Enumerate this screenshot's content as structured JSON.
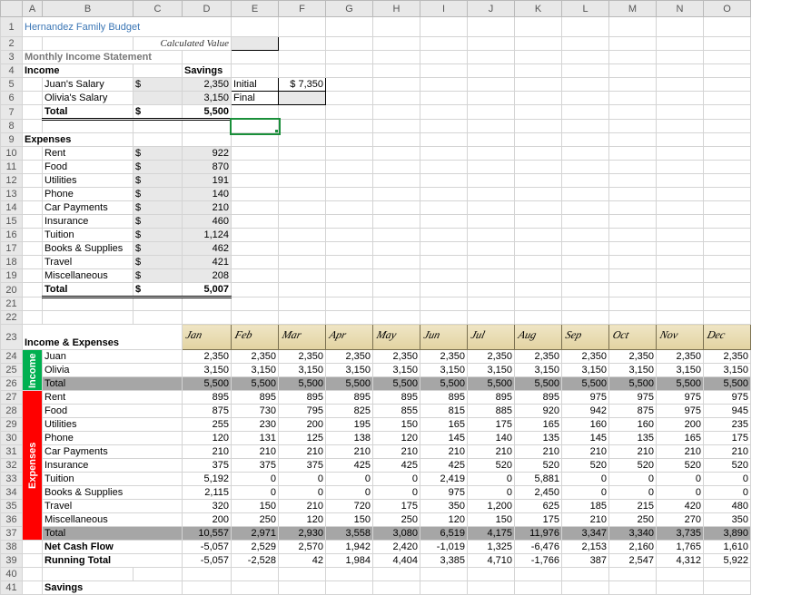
{
  "title": "Hernandez Family Budget",
  "subhead": "Monthly Income Statement",
  "calc_label": "Calculated Value",
  "sections": {
    "income": "Income",
    "expenses": "Expenses",
    "savings": "Savings",
    "initial": "Initial",
    "final": "Final",
    "total": "Total",
    "income_exp": "Income & Expenses",
    "netcash": "Net Cash Flow",
    "runtot": "Running Total"
  },
  "income": {
    "rows": [
      {
        "label": "Juan's Salary",
        "cur": "$",
        "val": "2,350"
      },
      {
        "label": "Olivia's Salary",
        "cur": "",
        "val": "3,150"
      }
    ],
    "total": {
      "cur": "$",
      "val": "5,500"
    }
  },
  "savings": {
    "initial": "$    7,350",
    "final": ""
  },
  "expenses_top": {
    "rows": [
      {
        "label": "Rent",
        "cur": "$",
        "val": "922"
      },
      {
        "label": "Food",
        "cur": "$",
        "val": "870"
      },
      {
        "label": "Utilities",
        "cur": "$",
        "val": "191"
      },
      {
        "label": "Phone",
        "cur": "$",
        "val": "140"
      },
      {
        "label": "Car Payments",
        "cur": "$",
        "val": "210"
      },
      {
        "label": "Insurance",
        "cur": "$",
        "val": "460"
      },
      {
        "label": "Tuition",
        "cur": "$",
        "val": "1,124"
      },
      {
        "label": "Books & Supplies",
        "cur": "$",
        "val": "462"
      },
      {
        "label": "Travel",
        "cur": "$",
        "val": "421"
      },
      {
        "label": "Miscellaneous",
        "cur": "$",
        "val": "208"
      }
    ],
    "total": {
      "cur": "$",
      "val": "5,007"
    }
  },
  "months": [
    "Jan",
    "Feb",
    "Mar",
    "Apr",
    "May",
    "Jun",
    "Jul",
    "Aug",
    "Sep",
    "Oct",
    "Nov",
    "Dec"
  ],
  "vlabels": {
    "income": "Income",
    "expenses": "Expenses"
  },
  "monthly": {
    "income": [
      {
        "label": "Juan",
        "v": [
          "2,350",
          "2,350",
          "2,350",
          "2,350",
          "2,350",
          "2,350",
          "2,350",
          "2,350",
          "2,350",
          "2,350",
          "2,350",
          "2,350"
        ]
      },
      {
        "label": "Olivia",
        "v": [
          "3,150",
          "3,150",
          "3,150",
          "3,150",
          "3,150",
          "3,150",
          "3,150",
          "3,150",
          "3,150",
          "3,150",
          "3,150",
          "3,150"
        ]
      }
    ],
    "income_total": [
      "5,500",
      "5,500",
      "5,500",
      "5,500",
      "5,500",
      "5,500",
      "5,500",
      "5,500",
      "5,500",
      "5,500",
      "5,500",
      "5,500"
    ],
    "expenses": [
      {
        "label": "Rent",
        "v": [
          "895",
          "895",
          "895",
          "895",
          "895",
          "895",
          "895",
          "895",
          "975",
          "975",
          "975",
          "975"
        ]
      },
      {
        "label": "Food",
        "v": [
          "875",
          "730",
          "795",
          "825",
          "855",
          "815",
          "885",
          "920",
          "942",
          "875",
          "975",
          "945"
        ]
      },
      {
        "label": "Utilities",
        "v": [
          "255",
          "230",
          "200",
          "195",
          "150",
          "165",
          "175",
          "165",
          "160",
          "160",
          "200",
          "235"
        ]
      },
      {
        "label": "Phone",
        "v": [
          "120",
          "131",
          "125",
          "138",
          "120",
          "145",
          "140",
          "135",
          "145",
          "135",
          "165",
          "175"
        ]
      },
      {
        "label": "Car Payments",
        "v": [
          "210",
          "210",
          "210",
          "210",
          "210",
          "210",
          "210",
          "210",
          "210",
          "210",
          "210",
          "210"
        ]
      },
      {
        "label": "Insurance",
        "v": [
          "375",
          "375",
          "375",
          "425",
          "425",
          "425",
          "520",
          "520",
          "520",
          "520",
          "520",
          "520"
        ]
      },
      {
        "label": "Tuition",
        "v": [
          "5,192",
          "0",
          "0",
          "0",
          "0",
          "2,419",
          "0",
          "5,881",
          "0",
          "0",
          "0",
          "0"
        ]
      },
      {
        "label": "Books & Supplies",
        "v": [
          "2,115",
          "0",
          "0",
          "0",
          "0",
          "975",
          "0",
          "2,450",
          "0",
          "0",
          "0",
          "0"
        ]
      },
      {
        "label": "Travel",
        "v": [
          "320",
          "150",
          "210",
          "720",
          "175",
          "350",
          "1,200",
          "625",
          "185",
          "215",
          "420",
          "480"
        ]
      },
      {
        "label": "Miscellaneous",
        "v": [
          "200",
          "250",
          "120",
          "150",
          "250",
          "120",
          "150",
          "175",
          "210",
          "250",
          "270",
          "350"
        ]
      }
    ],
    "expenses_total": [
      "10,557",
      "2,971",
      "2,930",
      "3,558",
      "3,080",
      "6,519",
      "4,175",
      "11,976",
      "3,347",
      "3,340",
      "3,735",
      "3,890"
    ],
    "netcash": [
      "-5,057",
      "2,529",
      "2,570",
      "1,942",
      "2,420",
      "-1,019",
      "1,325",
      "-6,476",
      "2,153",
      "2,160",
      "1,765",
      "1,610"
    ],
    "runtot": [
      "-5,057",
      "-2,528",
      "42",
      "1,984",
      "4,404",
      "3,385",
      "4,710",
      "-1,766",
      "387",
      "2,547",
      "4,312",
      "5,922"
    ]
  },
  "colors": {
    "title": "#3b76b5",
    "income_block": "#00b050",
    "expense_block": "#ff0000",
    "total_fill": "#a6a6a6",
    "gray": "#e8e8e8",
    "grid": "#d4d4d4",
    "sel": "#1a8f3a"
  }
}
